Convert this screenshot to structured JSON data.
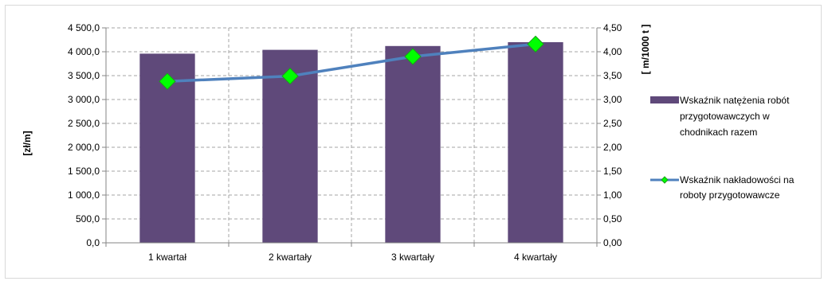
{
  "chart_data": {
    "type": "bar",
    "categories": [
      "1 kwartał",
      "2 kwartały",
      "3 kwartały",
      "4 kwartały"
    ],
    "series": [
      {
        "name": "Wskaźnik natężenia robót przygotowawczych w chodnikach razem",
        "type": "bar",
        "axis": "left",
        "color": "#5f497a",
        "values": [
          3960,
          4040,
          4120,
          4200
        ]
      },
      {
        "name": "Wskaźnik nakładowości na roboty przygotowawcze",
        "type": "line",
        "axis": "right",
        "color": "#4f81bd",
        "marker_color": "#00ff00",
        "values": [
          3.38,
          3.49,
          3.9,
          4.16
        ]
      }
    ],
    "ylabel": "[zł/m]",
    "y2label": "[ m/1000 t ]",
    "ylim": [
      0,
      4500
    ],
    "y2lim": [
      0,
      4.5
    ],
    "yticks": [
      "0,0",
      "500,0",
      "1 000,0",
      "1 500,0",
      "2 000,0",
      "2 500,0",
      "3 000,0",
      "3 500,0",
      "4 000,0",
      "4 500,0"
    ],
    "y2ticks": [
      "0,00",
      "0,50",
      "1,00",
      "1,50",
      "2,00",
      "2,50",
      "3,00",
      "3,50",
      "4,00",
      "4,50"
    ],
    "grid": true,
    "legend_position": "right",
    "legend_lines": [
      [
        "Wskaźnik natężenia robót",
        "przygotowawczych w",
        "chodnikach razem"
      ],
      [
        "Wskaźnik nakładowości na",
        "roboty przygotowawcze"
      ]
    ]
  }
}
